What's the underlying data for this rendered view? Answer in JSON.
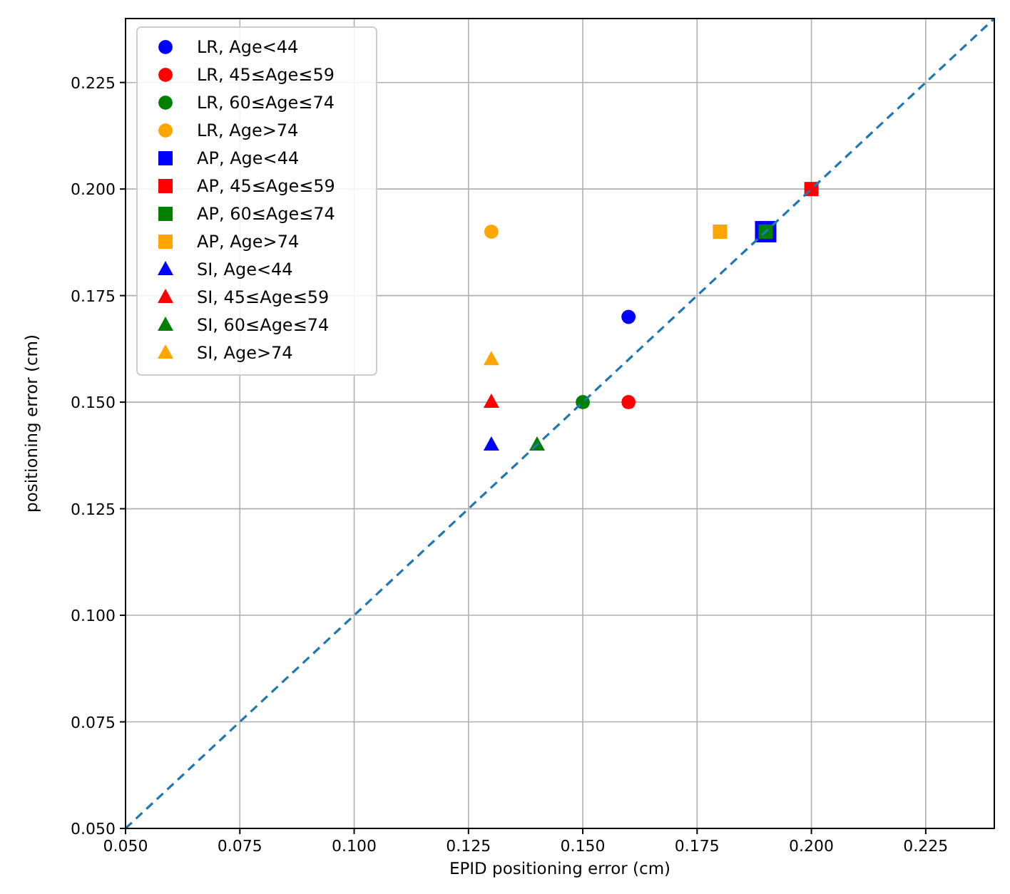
{
  "chart_data": {
    "type": "scatter",
    "xlabel": "EPID positioning error (cm)",
    "ylabel": "positioning error (cm)",
    "xlim": [
      0.05,
      0.24
    ],
    "ylim": [
      0.05,
      0.24
    ],
    "xticks": [
      {
        "value": 0.05,
        "label": "0.050"
      },
      {
        "value": 0.075,
        "label": "0.075"
      },
      {
        "value": 0.1,
        "label": "0.100"
      },
      {
        "value": 0.125,
        "label": "0.125"
      },
      {
        "value": 0.15,
        "label": "0.150"
      },
      {
        "value": 0.175,
        "label": "0.175"
      },
      {
        "value": 0.2,
        "label": "0.200"
      },
      {
        "value": 0.225,
        "label": "0.225"
      }
    ],
    "yticks": [
      {
        "value": 0.05,
        "label": "0.050"
      },
      {
        "value": 0.075,
        "label": "0.075"
      },
      {
        "value": 0.1,
        "label": "0.100"
      },
      {
        "value": 0.125,
        "label": "0.125"
      },
      {
        "value": 0.15,
        "label": "0.150"
      },
      {
        "value": 0.175,
        "label": "0.175"
      },
      {
        "value": 0.2,
        "label": "0.200"
      },
      {
        "value": 0.225,
        "label": "0.225"
      }
    ],
    "grid": true,
    "legend": "top left",
    "series": [
      {
        "name": "LR, Age<44",
        "color": "#0000ff",
        "marker": "circle",
        "x": [
          0.16
        ],
        "values": [
          0.17
        ]
      },
      {
        "name": "LR, 45≤Age≤59",
        "color": "#ff0000",
        "marker": "circle",
        "x": [
          0.16
        ],
        "values": [
          0.15
        ]
      },
      {
        "name": "LR, 60≤Age≤74",
        "color": "#008000",
        "marker": "circle",
        "x": [
          0.15
        ],
        "values": [
          0.15
        ]
      },
      {
        "name": "LR, Age>74",
        "color": "#ffa500",
        "marker": "circle",
        "x": [
          0.13
        ],
        "values": [
          0.19
        ]
      },
      {
        "name": "AP, Age<44",
        "color": "#0000ff",
        "marker": "square",
        "x": [
          0.19
        ],
        "values": [
          0.19
        ]
      },
      {
        "name": "AP, 45≤Age≤59",
        "color": "#ff0000",
        "marker": "square",
        "x": [
          0.2
        ],
        "values": [
          0.2
        ]
      },
      {
        "name": "AP, 60≤Age≤74",
        "color": "#008000",
        "marker": "square",
        "x": [
          0.19
        ],
        "values": [
          0.19
        ]
      },
      {
        "name": "AP, Age>74",
        "color": "#ffa500",
        "marker": "square",
        "x": [
          0.18
        ],
        "values": [
          0.19
        ]
      },
      {
        "name": "SI, Age<44",
        "color": "#0000ff",
        "marker": "triangle",
        "x": [
          0.13
        ],
        "values": [
          0.14
        ]
      },
      {
        "name": "SI, 45≤Age≤59",
        "color": "#ff0000",
        "marker": "triangle",
        "x": [
          0.13
        ],
        "values": [
          0.15
        ]
      },
      {
        "name": "SI, 60≤Age≤74",
        "color": "#008000",
        "marker": "triangle",
        "x": [
          0.14
        ],
        "values": [
          0.14
        ]
      },
      {
        "name": "SI, Age>74",
        "color": "#ffa500",
        "marker": "triangle",
        "x": [
          0.13
        ],
        "values": [
          0.16
        ]
      },
      {
        "type": "line",
        "color": "#1f77b4",
        "marker": "none",
        "line_style": "dashed",
        "x": [
          0.05,
          0.24
        ],
        "values": [
          0.05,
          0.24
        ]
      }
    ]
  }
}
